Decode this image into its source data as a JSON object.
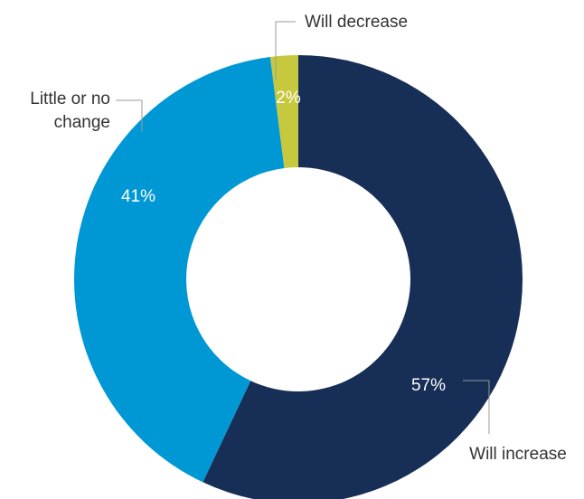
{
  "chart_data": {
    "type": "pie",
    "variant": "donut",
    "title": "",
    "slices": [
      {
        "label": "Will increase",
        "value": 57,
        "value_label": "57%",
        "color": "#172e56"
      },
      {
        "label": "Little or no change",
        "value": 41,
        "value_label": "41%",
        "color": "#0098d4"
      },
      {
        "label": "Will decrease",
        "value": 2,
        "value_label": "2%",
        "color": "#c6c83d"
      }
    ],
    "category_label_lines": [
      [
        "Will increase"
      ],
      [
        "Little or no",
        "change"
      ],
      [
        "Will decrease"
      ]
    ],
    "start_angle_deg": 0,
    "direction": "clockwise",
    "legend": "none"
  }
}
